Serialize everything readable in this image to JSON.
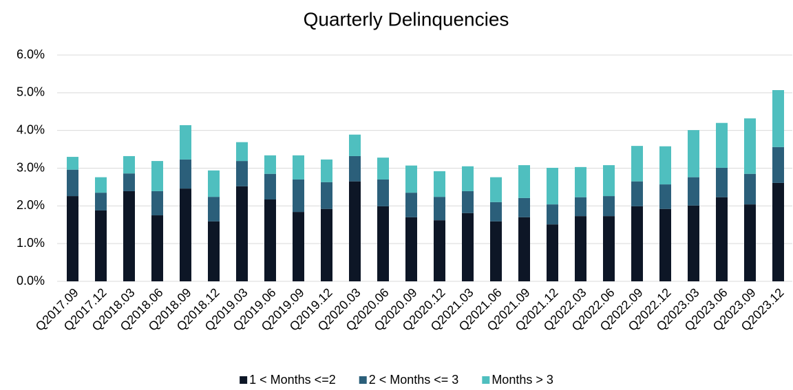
{
  "chart_data": {
    "type": "stacked_bar",
    "title": "Quarterly Delinquencies",
    "categories": [
      "Q2017.09",
      "Q2017.12",
      "Q2018.03",
      "Q2018.06",
      "Q2018.09",
      "Q2018.12",
      "Q2019.03",
      "Q2019.06",
      "Q2019.09",
      "Q2019.12",
      "Q2020.03",
      "Q2020.06",
      "Q2020.09",
      "Q2020.12",
      "Q2021.03",
      "Q2021.06",
      "Q2021.09",
      "Q2021.12",
      "Q2022.03",
      "Q2022.06",
      "Q2022.09",
      "Q2022.12",
      "Q2023.03",
      "Q2023.06",
      "Q2023.09",
      "Q2023.12"
    ],
    "series": [
      {
        "name": "1 < Months <=2",
        "color": "#0d1626",
        "values": [
          2.26,
          1.88,
          2.39,
          1.75,
          2.46,
          1.59,
          2.52,
          2.17,
          1.84,
          1.92,
          2.65,
          1.99,
          1.7,
          1.62,
          1.81,
          1.59,
          1.7,
          1.51,
          1.73,
          1.73,
          1.99,
          1.92,
          2.01,
          2.23,
          2.04,
          2.61
        ]
      },
      {
        "name": "2 < Months <= 3",
        "color": "#2b5f7a",
        "values": [
          0.7,
          0.47,
          0.47,
          0.64,
          0.77,
          0.65,
          0.67,
          0.68,
          0.86,
          0.71,
          0.67,
          0.71,
          0.65,
          0.62,
          0.58,
          0.51,
          0.51,
          0.53,
          0.5,
          0.53,
          0.66,
          0.65,
          0.75,
          0.78,
          0.81,
          0.95
        ]
      },
      {
        "name": "Months > 3",
        "color": "#4fbfbf",
        "values": [
          0.34,
          0.41,
          0.46,
          0.8,
          0.91,
          0.7,
          0.5,
          0.49,
          0.64,
          0.6,
          0.57,
          0.58,
          0.72,
          0.68,
          0.66,
          0.66,
          0.87,
          0.97,
          0.8,
          0.82,
          0.94,
          1.01,
          1.25,
          1.19,
          1.47,
          1.51
        ]
      }
    ],
    "ylim": [
      0,
      6
    ],
    "yticks": [
      {
        "value": 0,
        "label": "0.0%"
      },
      {
        "value": 1,
        "label": "1.0%"
      },
      {
        "value": 2,
        "label": "2.0%"
      },
      {
        "value": 3,
        "label": "3.0%"
      },
      {
        "value": 4,
        "label": "4.0%"
      },
      {
        "value": 5,
        "label": "5.0%"
      },
      {
        "value": 6,
        "label": "6.0%"
      }
    ],
    "grid": true,
    "legend": "bottom"
  }
}
